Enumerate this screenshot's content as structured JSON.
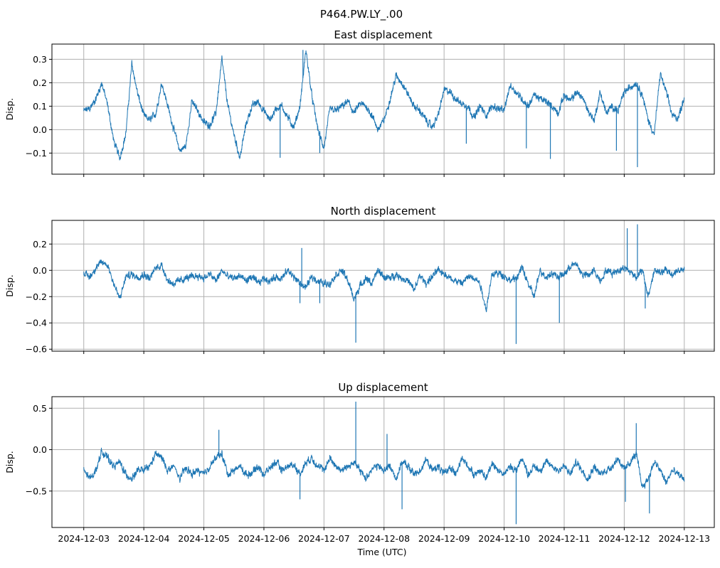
{
  "title": "P464.PW.LY_.00",
  "x_label": "Time (UTC)",
  "x_ticks": [
    "2024-12-03",
    "2024-12-04",
    "2024-12-05",
    "2024-12-06",
    "2024-12-07",
    "2024-12-08",
    "2024-12-09",
    "2024-12-10",
    "2024-12-11",
    "2024-12-12",
    "2024-12-13"
  ],
  "line_color": "#1f77b4",
  "grid_color": "#b0b0b0",
  "chart_data": [
    {
      "type": "line",
      "title": "East displacement",
      "ylabel": "Disp.",
      "ylim": [
        -0.19,
        0.365
      ],
      "yticks": [
        -0.1,
        0.0,
        0.1,
        0.2,
        0.3
      ],
      "ytick_labels": [
        "−0.1",
        "0.0",
        "0.1",
        "0.2",
        "0.3"
      ],
      "grid": true,
      "x": [
        0,
        0.1,
        0.2,
        0.3,
        0.4,
        0.5,
        0.6,
        0.7,
        0.8,
        0.9,
        1,
        1.1,
        1.2,
        1.3,
        1.4,
        1.5,
        1.6,
        1.7,
        1.8,
        1.9,
        2,
        2.1,
        2.2,
        2.3,
        2.4,
        2.5,
        2.6,
        2.7,
        2.8,
        2.9,
        3,
        3.1,
        3.2,
        3.3,
        3.4,
        3.5,
        3.6,
        3.7,
        3.8,
        3.9,
        4,
        4.1,
        4.2,
        4.3,
        4.4,
        4.5,
        4.6,
        4.7,
        4.8,
        4.9,
        5,
        5.1,
        5.2,
        5.3,
        5.4,
        5.5,
        5.6,
        5.7,
        5.8,
        5.9,
        6,
        6.1,
        6.2,
        6.3,
        6.4,
        6.5,
        6.6,
        6.7,
        6.8,
        6.9,
        7,
        7.1,
        7.2,
        7.3,
        7.4,
        7.5,
        7.6,
        7.7,
        7.8,
        7.9,
        8,
        8.1,
        8.2,
        8.3,
        8.4,
        8.5,
        8.6,
        8.7,
        8.8,
        8.9,
        9,
        9.1,
        9.2,
        9.3,
        9.4,
        9.5,
        9.6,
        9.7,
        9.8,
        9.9,
        10
      ],
      "y": [
        0.08,
        0.09,
        0.13,
        0.2,
        0.1,
        -0.05,
        -0.12,
        -0.02,
        0.28,
        0.15,
        0.06,
        0.04,
        0.07,
        0.2,
        0.1,
        0.0,
        -0.09,
        -0.07,
        0.12,
        0.08,
        0.03,
        0.02,
        0.07,
        0.3,
        0.1,
        -0.02,
        -0.12,
        0.02,
        0.1,
        0.12,
        0.08,
        0.04,
        0.09,
        0.1,
        0.05,
        0.01,
        0.1,
        0.34,
        0.14,
        0.0,
        -0.08,
        0.09,
        0.08,
        0.1,
        0.12,
        0.07,
        0.11,
        0.1,
        0.06,
        0.0,
        0.04,
        0.13,
        0.23,
        0.2,
        0.15,
        0.1,
        0.08,
        0.04,
        0.01,
        0.06,
        0.17,
        0.16,
        0.13,
        0.11,
        0.1,
        0.05,
        0.1,
        0.06,
        0.1,
        0.09,
        0.08,
        0.19,
        0.16,
        0.13,
        0.1,
        0.15,
        0.13,
        0.12,
        0.1,
        0.07,
        0.15,
        0.12,
        0.16,
        0.14,
        0.08,
        0.04,
        0.16,
        0.07,
        0.1,
        0.08,
        0.16,
        0.18,
        0.2,
        0.15,
        0.04,
        -0.02,
        0.24,
        0.16,
        0.06,
        0.05,
        0.14
      ],
      "spikes": [
        {
          "x": 3.27,
          "y": -0.12
        },
        {
          "x": 3.65,
          "y": 0.34
        },
        {
          "x": 3.93,
          "y": -0.1
        },
        {
          "x": 6.37,
          "y": -0.06
        },
        {
          "x": 7.37,
          "y": -0.08
        },
        {
          "x": 7.77,
          "y": -0.125
        },
        {
          "x": 8.87,
          "y": -0.09
        },
        {
          "x": 9.22,
          "y": -0.16
        }
      ]
    },
    {
      "type": "line",
      "title": "North displacement",
      "ylabel": "Disp.",
      "ylim": [
        -0.615,
        0.38
      ],
      "yticks": [
        -0.6,
        -0.4,
        -0.2,
        0.0,
        0.2
      ],
      "ytick_labels": [
        "−0.6",
        "−0.4",
        "−0.2",
        "0.0",
        "0.2"
      ],
      "grid": true,
      "x": [
        0,
        0.1,
        0.2,
        0.3,
        0.4,
        0.5,
        0.6,
        0.7,
        0.8,
        0.9,
        1,
        1.1,
        1.2,
        1.3,
        1.4,
        1.5,
        1.6,
        1.7,
        1.8,
        1.9,
        2,
        2.1,
        2.2,
        2.3,
        2.4,
        2.5,
        2.6,
        2.7,
        2.8,
        2.9,
        3,
        3.1,
        3.2,
        3.3,
        3.4,
        3.5,
        3.6,
        3.7,
        3.8,
        3.9,
        4,
        4.1,
        4.2,
        4.3,
        4.4,
        4.5,
        4.6,
        4.7,
        4.8,
        4.9,
        5,
        5.1,
        5.2,
        5.3,
        5.4,
        5.5,
        5.6,
        5.7,
        5.8,
        5.9,
        6,
        6.1,
        6.2,
        6.3,
        6.4,
        6.5,
        6.6,
        6.7,
        6.8,
        6.9,
        7,
        7.1,
        7.2,
        7.3,
        7.4,
        7.5,
        7.6,
        7.7,
        7.8,
        7.9,
        8,
        8.1,
        8.2,
        8.3,
        8.4,
        8.5,
        8.6,
        8.7,
        8.8,
        8.9,
        9,
        9.1,
        9.2,
        9.3,
        9.4,
        9.5,
        9.6,
        9.7,
        9.8,
        9.9,
        10
      ],
      "y": [
        -0.02,
        -0.05,
        0.02,
        0.06,
        0.04,
        -0.1,
        -0.22,
        -0.05,
        -0.03,
        -0.05,
        -0.03,
        -0.06,
        0.02,
        0.04,
        -0.08,
        -0.1,
        -0.08,
        -0.06,
        -0.05,
        -0.04,
        -0.06,
        -0.03,
        -0.08,
        0.0,
        -0.05,
        -0.06,
        -0.04,
        -0.08,
        -0.05,
        -0.1,
        -0.06,
        -0.08,
        -0.05,
        -0.06,
        0.0,
        -0.05,
        -0.1,
        -0.13,
        -0.05,
        -0.08,
        -0.1,
        -0.1,
        -0.03,
        0.0,
        -0.08,
        -0.22,
        -0.12,
        -0.06,
        -0.1,
        0.0,
        -0.05,
        -0.06,
        -0.03,
        -0.06,
        -0.08,
        -0.15,
        -0.04,
        -0.1,
        -0.05,
        0.0,
        -0.02,
        -0.06,
        -0.08,
        -0.1,
        -0.05,
        -0.05,
        -0.1,
        -0.3,
        -0.03,
        -0.02,
        -0.04,
        -0.08,
        -0.06,
        0.02,
        -0.1,
        -0.2,
        0.0,
        -0.05,
        -0.02,
        -0.05,
        -0.03,
        0.03,
        0.05,
        -0.03,
        -0.04,
        0.0,
        -0.08,
        0.0,
        -0.02,
        0.0,
        0.02,
        -0.01,
        -0.05,
        0.0,
        -0.2,
        0.0,
        -0.02,
        0.0,
        -0.03,
        0.0,
        0.0
      ],
      "spikes": [
        {
          "x": 3.6,
          "y": -0.25
        },
        {
          "x": 3.63,
          "y": 0.17
        },
        {
          "x": 3.93,
          "y": -0.25
        },
        {
          "x": 4.53,
          "y": -0.55
        },
        {
          "x": 7.2,
          "y": -0.56
        },
        {
          "x": 7.92,
          "y": -0.4
        },
        {
          "x": 9.05,
          "y": 0.32
        },
        {
          "x": 9.22,
          "y": 0.35
        },
        {
          "x": 9.35,
          "y": -0.29
        }
      ]
    },
    {
      "type": "line",
      "title": "Up displacement",
      "ylabel": "Disp.",
      "ylim": [
        -0.94,
        0.64
      ],
      "yticks": [
        -0.5,
        0.0,
        0.5
      ],
      "ytick_labels": [
        "−0.5",
        "0.0",
        "0.5"
      ],
      "grid": true,
      "x": [
        0,
        0.1,
        0.2,
        0.3,
        0.4,
        0.5,
        0.6,
        0.7,
        0.8,
        0.9,
        1,
        1.1,
        1.2,
        1.3,
        1.4,
        1.5,
        1.6,
        1.7,
        1.8,
        1.9,
        2,
        2.1,
        2.2,
        2.3,
        2.4,
        2.5,
        2.6,
        2.7,
        2.8,
        2.9,
        3,
        3.1,
        3.2,
        3.3,
        3.4,
        3.5,
        3.6,
        3.7,
        3.8,
        3.9,
        4,
        4.1,
        4.2,
        4.3,
        4.4,
        4.5,
        4.6,
        4.7,
        4.8,
        4.9,
        5,
        5.1,
        5.2,
        5.3,
        5.4,
        5.5,
        5.6,
        5.7,
        5.8,
        5.9,
        6,
        6.1,
        6.2,
        6.3,
        6.4,
        6.5,
        6.6,
        6.7,
        6.8,
        6.9,
        7,
        7.1,
        7.2,
        7.3,
        7.4,
        7.5,
        7.6,
        7.7,
        7.8,
        7.9,
        8,
        8.1,
        8.2,
        8.3,
        8.4,
        8.5,
        8.6,
        8.7,
        8.8,
        8.9,
        9,
        9.1,
        9.2,
        9.3,
        9.4,
        9.5,
        9.6,
        9.7,
        9.8,
        9.9,
        10
      ],
      "y": [
        -0.25,
        -0.35,
        -0.25,
        -0.02,
        -0.1,
        -0.2,
        -0.15,
        -0.3,
        -0.35,
        -0.25,
        -0.25,
        -0.2,
        -0.05,
        -0.1,
        -0.25,
        -0.2,
        -0.35,
        -0.22,
        -0.3,
        -0.25,
        -0.3,
        -0.2,
        -0.1,
        -0.05,
        -0.3,
        -0.25,
        -0.2,
        -0.3,
        -0.28,
        -0.2,
        -0.3,
        -0.22,
        -0.15,
        -0.25,
        -0.2,
        -0.18,
        -0.3,
        -0.15,
        -0.1,
        -0.2,
        -0.25,
        -0.1,
        -0.2,
        -0.25,
        -0.2,
        -0.15,
        -0.25,
        -0.35,
        -0.22,
        -0.2,
        -0.25,
        -0.2,
        -0.35,
        -0.15,
        -0.2,
        -0.3,
        -0.25,
        -0.12,
        -0.25,
        -0.2,
        -0.3,
        -0.2,
        -0.3,
        -0.1,
        -0.2,
        -0.3,
        -0.25,
        -0.35,
        -0.15,
        -0.25,
        -0.3,
        -0.2,
        -0.25,
        -0.1,
        -0.3,
        -0.2,
        -0.25,
        -0.15,
        -0.2,
        -0.25,
        -0.2,
        -0.3,
        -0.15,
        -0.25,
        -0.35,
        -0.2,
        -0.3,
        -0.25,
        -0.2,
        -0.1,
        -0.25,
        -0.15,
        -0.05,
        -0.45,
        -0.35,
        -0.15,
        -0.25,
        -0.4,
        -0.25,
        -0.3,
        -0.35
      ],
      "spikes": [
        {
          "x": 2.25,
          "y": 0.24
        },
        {
          "x": 3.6,
          "y": -0.6
        },
        {
          "x": 4.53,
          "y": 0.58
        },
        {
          "x": 5.05,
          "y": 0.19
        },
        {
          "x": 5.3,
          "y": -0.72
        },
        {
          "x": 7.2,
          "y": -0.9
        },
        {
          "x": 9.02,
          "y": -0.63
        },
        {
          "x": 9.2,
          "y": 0.32
        },
        {
          "x": 9.42,
          "y": -0.77
        }
      ]
    }
  ]
}
